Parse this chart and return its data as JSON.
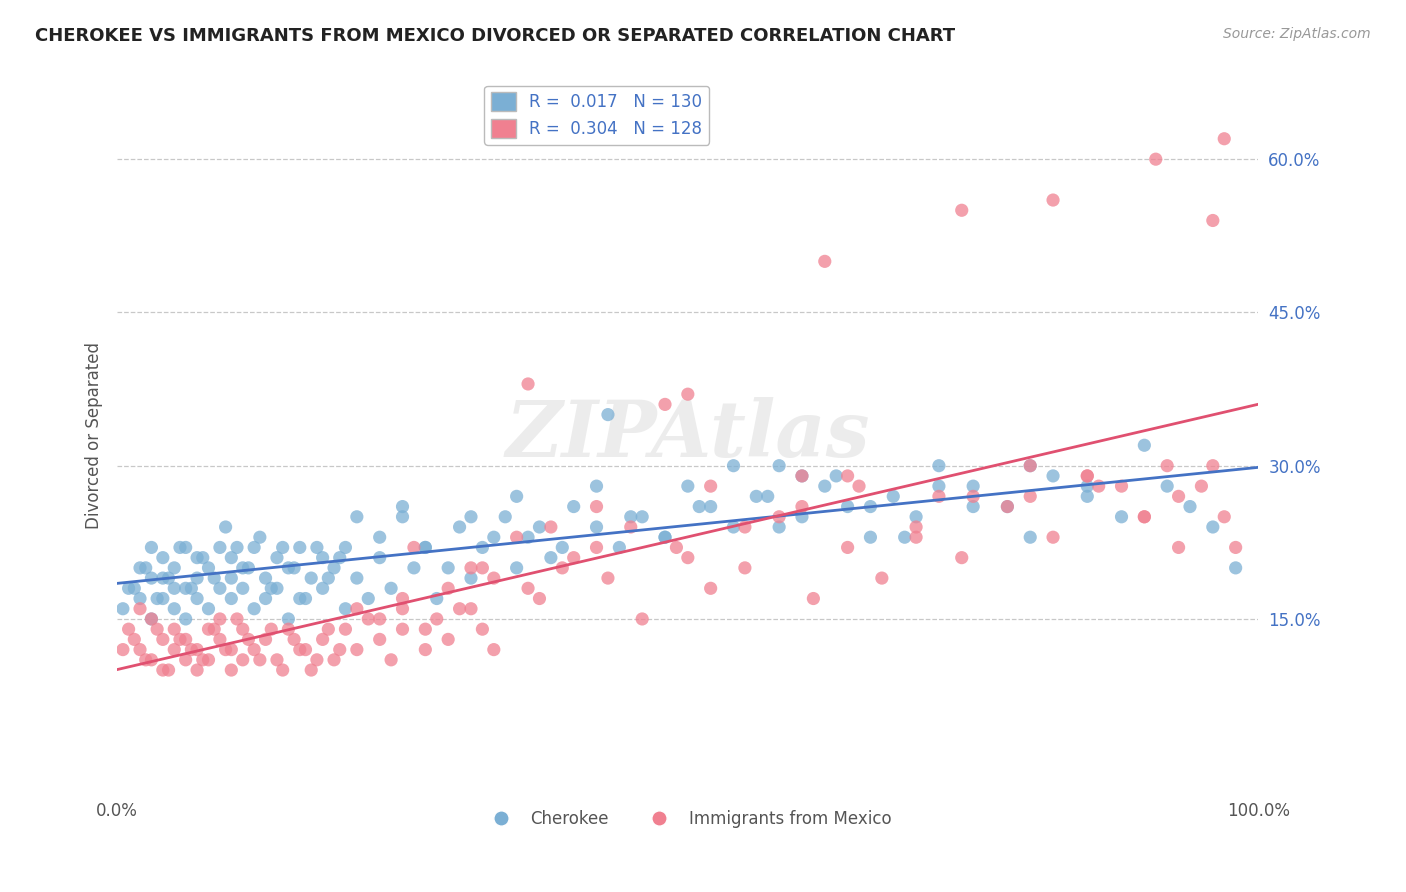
{
  "title": "CHEROKEE VS IMMIGRANTS FROM MEXICO DIVORCED OR SEPARATED CORRELATION CHART",
  "source": "Source: ZipAtlas.com",
  "ylabel": "Divorced or Separated",
  "ylabel_ticks": [
    "15.0%",
    "30.0%",
    "45.0%",
    "60.0%"
  ],
  "ylabel_vals": [
    0.15,
    0.3,
    0.45,
    0.6
  ],
  "xlim": [
    0.0,
    1.0
  ],
  "ylim": [
    -0.02,
    0.68
  ],
  "blue_color": "#7bafd4",
  "pink_color": "#f08090",
  "line_blue": "#4472c4",
  "line_pink": "#e05070",
  "blue_scatter_x": [
    0.01,
    0.02,
    0.02,
    0.03,
    0.03,
    0.03,
    0.04,
    0.04,
    0.04,
    0.05,
    0.05,
    0.05,
    0.06,
    0.06,
    0.06,
    0.07,
    0.07,
    0.07,
    0.08,
    0.08,
    0.09,
    0.09,
    0.1,
    0.1,
    0.1,
    0.11,
    0.11,
    0.12,
    0.12,
    0.13,
    0.13,
    0.14,
    0.14,
    0.15,
    0.15,
    0.16,
    0.16,
    0.17,
    0.18,
    0.18,
    0.19,
    0.2,
    0.2,
    0.21,
    0.22,
    0.23,
    0.24,
    0.25,
    0.26,
    0.27,
    0.28,
    0.3,
    0.31,
    0.32,
    0.34,
    0.35,
    0.36,
    0.38,
    0.4,
    0.42,
    0.44,
    0.46,
    0.48,
    0.5,
    0.52,
    0.54,
    0.56,
    0.58,
    0.6,
    0.62,
    0.64,
    0.66,
    0.68,
    0.7,
    0.72,
    0.75,
    0.78,
    0.8,
    0.82,
    0.85,
    0.88,
    0.9,
    0.92,
    0.94,
    0.96,
    0.98,
    0.005,
    0.015,
    0.025,
    0.035,
    0.045,
    0.055,
    0.065,
    0.075,
    0.085,
    0.095,
    0.105,
    0.115,
    0.125,
    0.135,
    0.145,
    0.155,
    0.165,
    0.175,
    0.185,
    0.195,
    0.21,
    0.23,
    0.25,
    0.27,
    0.29,
    0.31,
    0.33,
    0.35,
    0.37,
    0.39,
    0.42,
    0.45,
    0.48,
    0.51,
    0.54,
    0.57,
    0.6,
    0.63,
    0.66,
    0.69,
    0.72,
    0.75,
    0.8,
    0.85,
    0.43,
    0.58
  ],
  "blue_scatter_y": [
    0.18,
    0.2,
    0.17,
    0.19,
    0.22,
    0.15,
    0.21,
    0.17,
    0.19,
    0.18,
    0.16,
    0.2,
    0.22,
    0.18,
    0.15,
    0.19,
    0.17,
    0.21,
    0.2,
    0.16,
    0.18,
    0.22,
    0.17,
    0.19,
    0.21,
    0.18,
    0.2,
    0.16,
    0.22,
    0.19,
    0.17,
    0.21,
    0.18,
    0.2,
    0.15,
    0.22,
    0.17,
    0.19,
    0.18,
    0.21,
    0.2,
    0.16,
    0.22,
    0.19,
    0.17,
    0.21,
    0.18,
    0.25,
    0.2,
    0.22,
    0.17,
    0.24,
    0.19,
    0.22,
    0.25,
    0.2,
    0.23,
    0.21,
    0.26,
    0.24,
    0.22,
    0.25,
    0.23,
    0.28,
    0.26,
    0.3,
    0.27,
    0.24,
    0.29,
    0.28,
    0.26,
    0.23,
    0.27,
    0.25,
    0.3,
    0.28,
    0.26,
    0.23,
    0.29,
    0.27,
    0.25,
    0.32,
    0.28,
    0.26,
    0.24,
    0.2,
    0.16,
    0.18,
    0.2,
    0.17,
    0.19,
    0.22,
    0.18,
    0.21,
    0.19,
    0.24,
    0.22,
    0.2,
    0.23,
    0.18,
    0.22,
    0.2,
    0.17,
    0.22,
    0.19,
    0.21,
    0.25,
    0.23,
    0.26,
    0.22,
    0.2,
    0.25,
    0.23,
    0.27,
    0.24,
    0.22,
    0.28,
    0.25,
    0.23,
    0.26,
    0.24,
    0.27,
    0.25,
    0.29,
    0.26,
    0.23,
    0.28,
    0.26,
    0.3,
    0.28,
    0.35,
    0.3
  ],
  "pink_scatter_x": [
    0.01,
    0.02,
    0.02,
    0.03,
    0.03,
    0.04,
    0.04,
    0.05,
    0.05,
    0.06,
    0.06,
    0.07,
    0.07,
    0.08,
    0.08,
    0.09,
    0.09,
    0.1,
    0.1,
    0.11,
    0.11,
    0.12,
    0.13,
    0.14,
    0.15,
    0.16,
    0.17,
    0.18,
    0.19,
    0.2,
    0.21,
    0.22,
    0.23,
    0.24,
    0.25,
    0.26,
    0.27,
    0.28,
    0.29,
    0.3,
    0.31,
    0.32,
    0.33,
    0.35,
    0.37,
    0.4,
    0.43,
    0.46,
    0.49,
    0.52,
    0.55,
    0.58,
    0.61,
    0.64,
    0.67,
    0.7,
    0.74,
    0.78,
    0.82,
    0.86,
    0.9,
    0.93,
    0.96,
    0.005,
    0.015,
    0.025,
    0.035,
    0.045,
    0.055,
    0.065,
    0.075,
    0.085,
    0.095,
    0.105,
    0.115,
    0.125,
    0.135,
    0.145,
    0.155,
    0.165,
    0.175,
    0.185,
    0.195,
    0.21,
    0.23,
    0.25,
    0.27,
    0.29,
    0.31,
    0.33,
    0.36,
    0.39,
    0.42,
    0.45,
    0.5,
    0.55,
    0.6,
    0.65,
    0.7,
    0.8,
    0.85,
    0.9,
    0.95,
    0.64,
    0.75,
    0.85,
    0.92,
    0.97,
    0.36,
    0.48,
    0.32,
    0.25,
    0.38,
    0.42,
    0.52,
    0.6,
    0.72,
    0.8,
    0.88,
    0.93,
    0.5,
    0.62,
    0.74,
    0.82,
    0.91,
    0.96,
    0.97,
    0.98
  ],
  "pink_scatter_y": [
    0.14,
    0.16,
    0.12,
    0.15,
    0.11,
    0.13,
    0.1,
    0.12,
    0.14,
    0.11,
    0.13,
    0.1,
    0.12,
    0.14,
    0.11,
    0.13,
    0.15,
    0.1,
    0.12,
    0.11,
    0.14,
    0.12,
    0.13,
    0.11,
    0.14,
    0.12,
    0.1,
    0.13,
    0.11,
    0.14,
    0.12,
    0.15,
    0.13,
    0.11,
    0.14,
    0.22,
    0.12,
    0.15,
    0.13,
    0.16,
    0.2,
    0.14,
    0.12,
    0.23,
    0.17,
    0.21,
    0.19,
    0.15,
    0.22,
    0.18,
    0.2,
    0.25,
    0.17,
    0.22,
    0.19,
    0.24,
    0.21,
    0.26,
    0.23,
    0.28,
    0.25,
    0.22,
    0.3,
    0.12,
    0.13,
    0.11,
    0.14,
    0.1,
    0.13,
    0.12,
    0.11,
    0.14,
    0.12,
    0.15,
    0.13,
    0.11,
    0.14,
    0.1,
    0.13,
    0.12,
    0.11,
    0.14,
    0.12,
    0.16,
    0.15,
    0.17,
    0.14,
    0.18,
    0.16,
    0.19,
    0.18,
    0.2,
    0.22,
    0.24,
    0.21,
    0.24,
    0.26,
    0.28,
    0.23,
    0.27,
    0.29,
    0.25,
    0.28,
    0.29,
    0.27,
    0.29,
    0.3,
    0.25,
    0.38,
    0.36,
    0.2,
    0.16,
    0.24,
    0.26,
    0.28,
    0.29,
    0.27,
    0.3,
    0.28,
    0.27,
    0.37,
    0.5,
    0.55,
    0.56,
    0.6,
    0.54,
    0.62,
    0.22
  ]
}
